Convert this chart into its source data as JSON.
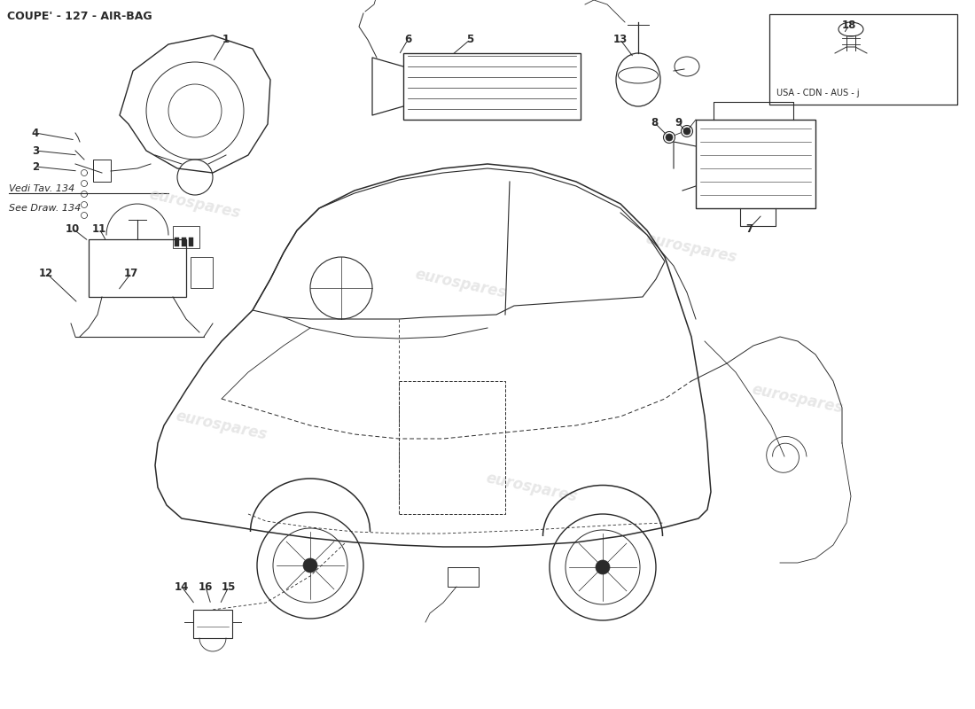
{
  "title": "COUPE' - 127 - AIR-BAG",
  "title_fontsize": 9,
  "bg_color": "#ffffff",
  "line_color": "#2a2a2a",
  "watermark_color": "#d0d0d0",
  "watermark_text": "eurospares",
  "box_label": "USA - CDN - AUS - j",
  "vedi_line1": "Vedi Tav. 134",
  "vedi_line2": "See Draw. 134",
  "fig_width": 11.0,
  "fig_height": 8.0,
  "dpi": 100
}
